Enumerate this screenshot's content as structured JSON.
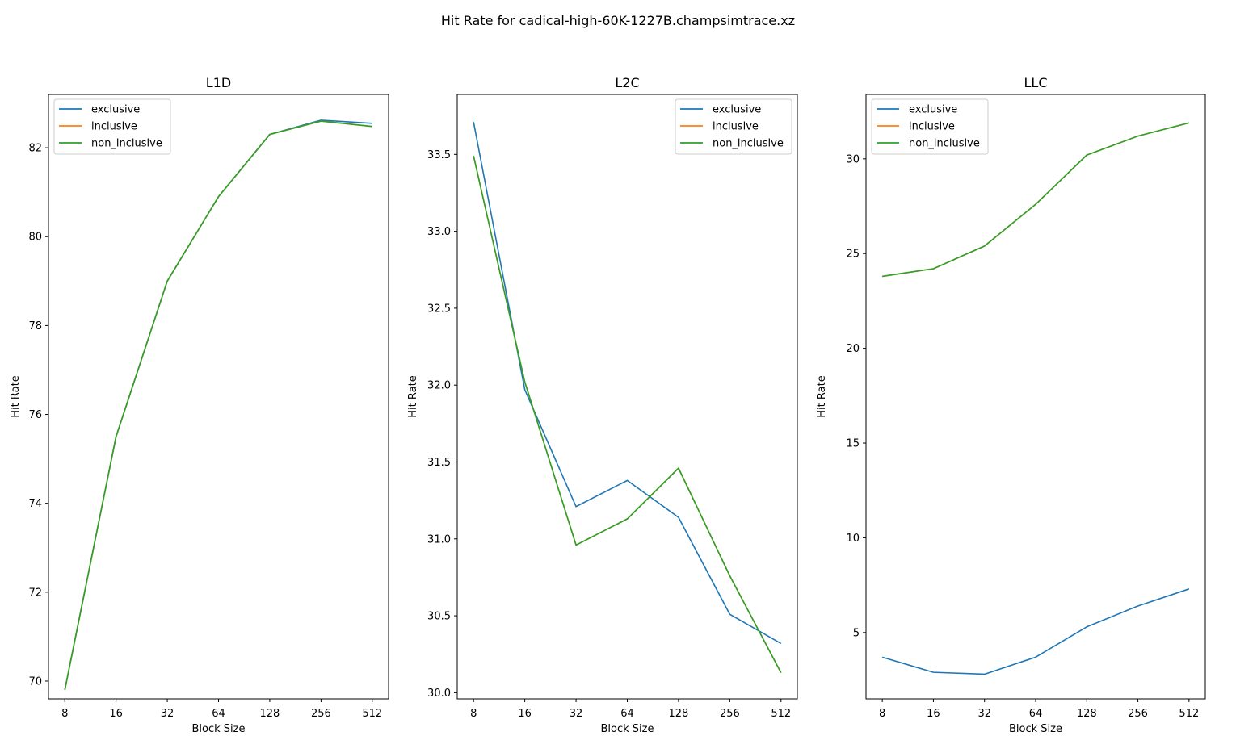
{
  "suptitle": "Hit Rate for cadical-high-60K-1227B.champsimtrace.xz",
  "colors": {
    "exclusive": "#1f77b4",
    "inclusive": "#ff7f0e",
    "non_inclusive": "#2ca02c"
  },
  "chart_data": [
    {
      "type": "line",
      "title": "L1D",
      "xlabel": "Block Size",
      "ylabel": "Hit Rate",
      "categories": [
        "8",
        "16",
        "32",
        "64",
        "128",
        "256",
        "512"
      ],
      "ylim": [
        69.6,
        83.2
      ],
      "yticks": [
        70,
        72,
        74,
        76,
        78,
        80,
        82
      ],
      "legend": "top-left",
      "series": [
        {
          "name": "exclusive",
          "values": [
            69.8,
            75.5,
            79.0,
            80.9,
            82.3,
            82.62,
            82.55
          ]
        },
        {
          "name": "inclusive",
          "values": [
            69.8,
            75.5,
            79.0,
            80.9,
            82.3,
            82.6,
            82.48
          ]
        },
        {
          "name": "non_inclusive",
          "values": [
            69.8,
            75.5,
            79.0,
            80.9,
            82.3,
            82.6,
            82.48
          ]
        }
      ]
    },
    {
      "type": "line",
      "title": "L2C",
      "xlabel": "Block Size",
      "ylabel": "Hit Rate",
      "categories": [
        "8",
        "16",
        "32",
        "64",
        "128",
        "256",
        "512"
      ],
      "ylim": [
        29.96,
        33.89
      ],
      "yticks": [
        30.0,
        30.5,
        31.0,
        31.5,
        32.0,
        32.5,
        33.0,
        33.5
      ],
      "ytick_labels": [
        "30.0",
        "30.5",
        "31.0",
        "31.5",
        "32.0",
        "32.5",
        "33.0",
        "33.5"
      ],
      "legend": "top-right",
      "series": [
        {
          "name": "exclusive",
          "values": [
            33.71,
            31.97,
            31.21,
            31.38,
            31.14,
            30.51,
            30.32
          ]
        },
        {
          "name": "inclusive",
          "values": [
            33.49,
            32.02,
            30.96,
            31.13,
            31.46,
            30.76,
            30.13
          ]
        },
        {
          "name": "non_inclusive",
          "values": [
            33.49,
            32.02,
            30.96,
            31.13,
            31.46,
            30.76,
            30.13
          ]
        }
      ]
    },
    {
      "type": "line",
      "title": "LLC",
      "xlabel": "Block Size",
      "ylabel": "Hit Rate",
      "categories": [
        "8",
        "16",
        "32",
        "64",
        "128",
        "256",
        "512"
      ],
      "ylim": [
        1.5,
        33.4
      ],
      "yticks": [
        5,
        10,
        15,
        20,
        25,
        30
      ],
      "legend": "top-left",
      "series": [
        {
          "name": "exclusive",
          "values": [
            3.7,
            2.9,
            2.8,
            3.7,
            5.3,
            6.4,
            7.3
          ]
        },
        {
          "name": "inclusive",
          "values": [
            23.8,
            24.2,
            25.4,
            27.6,
            30.2,
            31.2,
            31.9
          ]
        },
        {
          "name": "non_inclusive",
          "values": [
            23.8,
            24.2,
            25.4,
            27.6,
            30.2,
            31.2,
            31.9
          ]
        }
      ]
    }
  ]
}
